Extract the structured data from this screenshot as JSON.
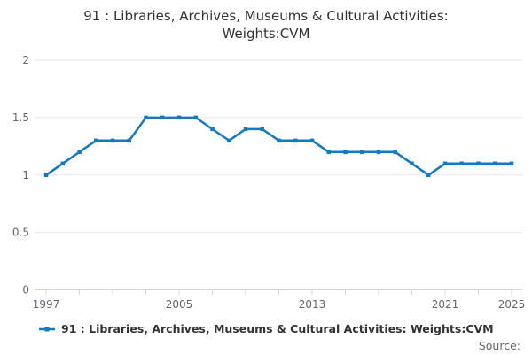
{
  "title": {
    "line1": "91 : Libraries, Archives, Museums & Cultural Activities:",
    "line2": "Weights:CVM"
  },
  "legend": {
    "label": "91 : Libraries, Archives, Museums & Cultural Activities: Weights:CVM",
    "marker_icon": "line-with-square-marker-icon"
  },
  "source": {
    "label": "Source:"
  },
  "chart_data": {
    "type": "line",
    "title": "91 : Libraries, Archives, Museums & Cultural Activities: Weights:CVM",
    "series": [
      {
        "name": "91 : Libraries, Archives, Museums & Cultural Activities: Weights:CVM",
        "x": [
          1997,
          1998,
          1999,
          2000,
          2001,
          2002,
          2003,
          2004,
          2005,
          2006,
          2007,
          2008,
          2009,
          2010,
          2011,
          2012,
          2013,
          2014,
          2015,
          2016,
          2017,
          2018,
          2019,
          2020,
          2021,
          2022,
          2023,
          2024,
          2025
        ],
        "values": [
          1.0,
          1.1,
          1.2,
          1.3,
          1.3,
          1.3,
          1.5,
          1.5,
          1.5,
          1.5,
          1.4,
          1.3,
          1.4,
          1.4,
          1.3,
          1.3,
          1.3,
          1.2,
          1.2,
          1.2,
          1.2,
          1.2,
          1.1,
          1.0,
          1.1,
          1.1,
          1.1,
          1.1,
          1.1
        ]
      }
    ],
    "xlabel": "",
    "ylabel": "",
    "xlim": [
      1997,
      2025
    ],
    "ylim": [
      0,
      2
    ],
    "y_ticks": [
      0,
      0.5,
      1,
      1.5,
      2
    ],
    "y_tick_labels": [
      "0",
      "0.5",
      "1",
      "1.5",
      "2"
    ],
    "x_tick_step_years": 2,
    "x_labeled_ticks": [
      1997,
      2005,
      2013,
      2021,
      2025
    ],
    "x_tick_labels": [
      "1997",
      "2005",
      "2013",
      "2021",
      "2025"
    ],
    "grid": "horizontal",
    "legend_position": "bottom-left",
    "marker": "square",
    "colors": {
      "line": "#1778be",
      "grid_line": "#e6e6e6",
      "axis_line": "#ccd6eb",
      "tick_mark": "#ccd6eb",
      "axis_label_text": "#666666",
      "title_text": "#333333",
      "legend_text": "#333333",
      "source_text": "#666666"
    }
  }
}
